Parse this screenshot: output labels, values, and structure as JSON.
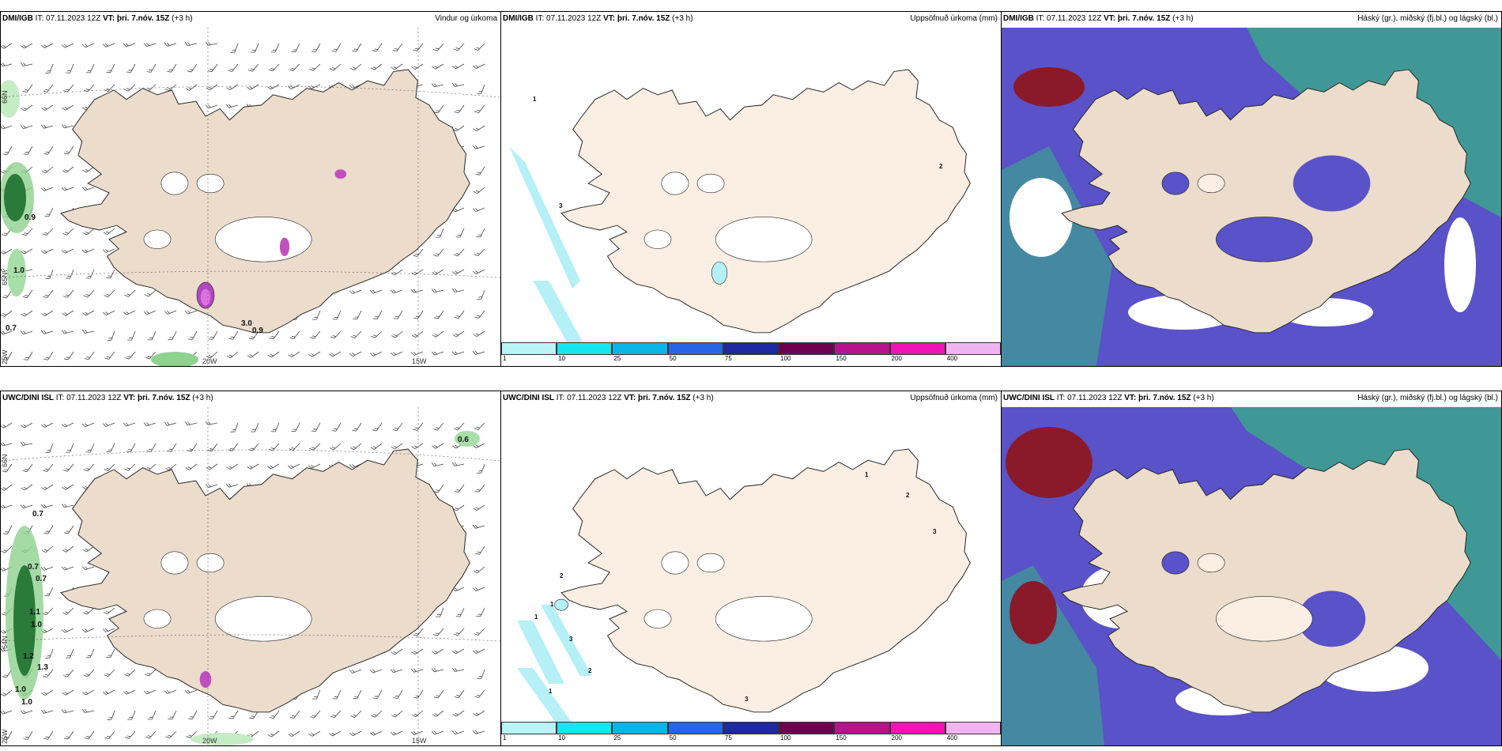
{
  "panels": {
    "p1": {
      "source": "DMI/IGB",
      "it": "IT: 07.11.2023 12Z",
      "vt": "VT: þri. 7.nóv. 15Z",
      "lead": "(+3 h)",
      "title": "Vindur og úrkoma"
    },
    "p2": {
      "source": "DMI/IGB",
      "it": "IT: 07.11.2023 12Z",
      "vt": "VT: þri. 7.nóv. 15Z",
      "lead": "(+3 h)",
      "title": "Uppsöfnuð úrkoma (mm)"
    },
    "p3": {
      "source": "DMI/IGB",
      "it": "IT: 07.11.2023 12Z",
      "vt": "VT: þri. 7.nóv. 15Z",
      "lead": "(+3 h)",
      "title": "Háský (gr.), miðský (fj.bl.) og lágský (bl.)"
    },
    "p4": {
      "source": "UWC/DINI ISL",
      "it": "IT: 07.11.2023 12Z",
      "vt": "VT: þri. 7.nóv. 15Z",
      "lead": "(+3 h)",
      "title": ""
    },
    "p5": {
      "source": "UWC/DINI ISL",
      "it": "IT: 07.11.2023 12Z",
      "vt": "VT: þri. 7.nóv. 15Z",
      "lead": "(+3 h)",
      "title": "Uppsöfnuð úrkoma (mm)"
    },
    "p6": {
      "source": "UWC/DINI ISL",
      "it": "IT: 07.11.2023 12Z",
      "vt": "VT: þri. 7.nóv. 15Z",
      "lead": "(+3 h)",
      "title": "Háský (gr.), miðský (fj.bl.) og lágský (bl.)"
    }
  },
  "grid_labels": {
    "lat66": "66N",
    "lat65": "65N",
    "lat64": "64N",
    "lat63": "63N",
    "lon20": "20W",
    "lon15": "15W",
    "lon25": "25W"
  },
  "wind_values_top": [
    "0.9",
    "1.0",
    "0.7",
    "3.0",
    "0.9"
  ],
  "wind_values_bottom": [
    "0.6",
    "0.7",
    "0.7",
    "0.7",
    "1.1",
    "1.0",
    "1.2",
    "1.3",
    "1.0",
    "1.0"
  ],
  "precip_values_top": [
    "1",
    "3",
    "2"
  ],
  "precip_values_bottom": [
    "1",
    "2",
    "3",
    "2",
    "1",
    "1",
    "3",
    "2",
    "1",
    "3"
  ],
  "colorbar": {
    "ticks": [
      "1",
      "10",
      "25",
      "50",
      "75",
      "100",
      "150",
      "200",
      "400"
    ],
    "colors": [
      "#b8f4f8",
      "#14e6f0",
      "#0ab4e6",
      "#2864e6",
      "#1e28a0",
      "#6e0050",
      "#b4148c",
      "#f014b4",
      "#f0b4f0"
    ]
  },
  "colors": {
    "land": "#ecdccb",
    "land_light": "#fbeee2",
    "sea_precip": "#b4f0f5",
    "wind_green": "#2a8a3a",
    "cloud_purple": "#5a52c8",
    "cloud_teal": "#3ca090",
    "cloud_red": "#8a1a2a"
  }
}
